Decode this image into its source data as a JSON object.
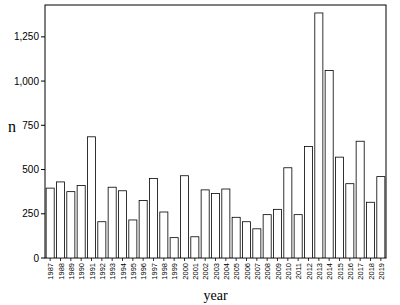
{
  "chart_data": {
    "type": "bar",
    "x_label": "year",
    "y_label": "n",
    "categories": [
      "1987",
      "1988",
      "1989",
      "1990",
      "1991",
      "1992",
      "1993",
      "1994",
      "1995",
      "1996",
      "1997",
      "1998",
      "1999",
      "2000",
      "2001",
      "2002",
      "2003",
      "2004",
      "2005",
      "2006",
      "2007",
      "2008",
      "2009",
      "2010",
      "2011",
      "2012",
      "2013",
      "2014",
      "2015",
      "2016",
      "2017",
      "2018",
      "2019"
    ],
    "values": [
      395,
      430,
      375,
      410,
      685,
      205,
      400,
      380,
      215,
      325,
      450,
      260,
      115,
      465,
      120,
      385,
      365,
      390,
      230,
      205,
      165,
      245,
      275,
      510,
      245,
      630,
      1385,
      1060,
      570,
      420,
      660,
      315,
      460
    ],
    "color": "#ffffff",
    "ylim": [
      0,
      1430
    ],
    "yticks": [
      0,
      250,
      500,
      750,
      {
        "value": 1000,
        "label": "1,000"
      },
      {
        "value": 1250,
        "label": "1,250"
      }
    ],
    "grid": false
  }
}
